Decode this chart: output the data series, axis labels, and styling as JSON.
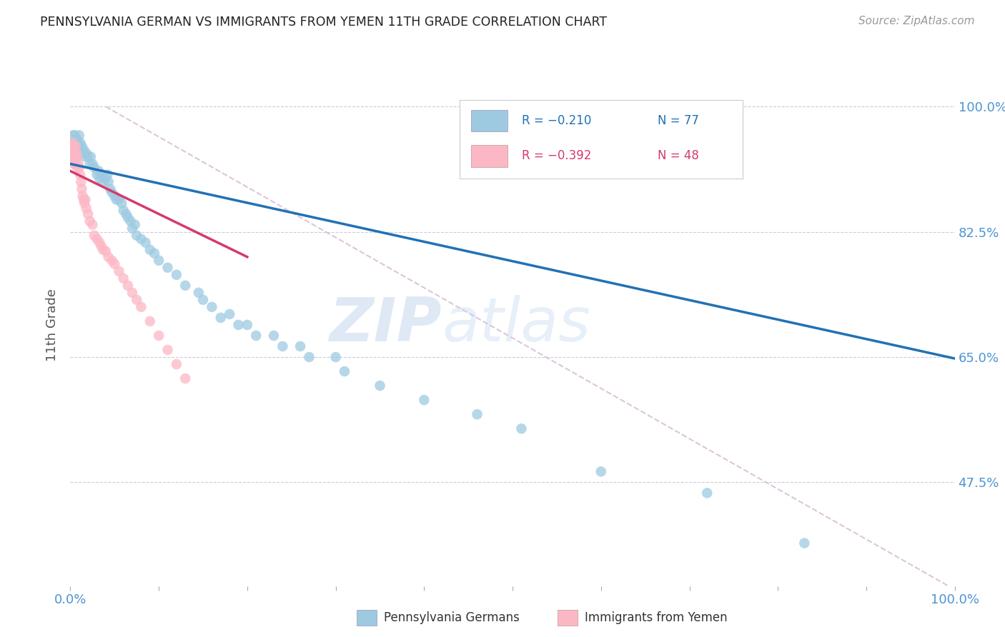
{
  "title": "PENNSYLVANIA GERMAN VS IMMIGRANTS FROM YEMEN 11TH GRADE CORRELATION CHART",
  "source": "Source: ZipAtlas.com",
  "ylabel": "11th Grade",
  "ytick_vals": [
    1.0,
    0.825,
    0.65,
    0.475
  ],
  "ytick_labels": [
    "100.0%",
    "82.5%",
    "65.0%",
    "47.5%"
  ],
  "xmin": 0.0,
  "xmax": 1.0,
  "ymin": 0.33,
  "ymax": 1.06,
  "color_blue": "#9ecae1",
  "color_pink": "#fcb7c5",
  "color_line_blue": "#2171b5",
  "color_line_pink": "#d63b6a",
  "color_line_dashed": "#d4b8d0",
  "color_axis_labels": "#4d94d4",
  "color_title": "#222222",
  "color_source": "#999999",
  "background_color": "#ffffff",
  "watermark_zip": "ZIP",
  "watermark_atlas": "atlas",
  "blue_line_x0": 0.0,
  "blue_line_x1": 1.0,
  "blue_line_y0": 0.92,
  "blue_line_y1": 0.648,
  "pink_line_x0": 0.0,
  "pink_line_x1": 0.2,
  "pink_line_y0": 0.91,
  "pink_line_y1": 0.79,
  "dashed_line_x0": 0.04,
  "dashed_line_x1": 1.0,
  "dashed_line_y0": 1.0,
  "dashed_line_y1": 0.325,
  "blue_x": [
    0.003,
    0.003,
    0.004,
    0.004,
    0.005,
    0.005,
    0.006,
    0.007,
    0.007,
    0.008,
    0.008,
    0.009,
    0.01,
    0.01,
    0.011,
    0.012,
    0.013,
    0.014,
    0.015,
    0.016,
    0.017,
    0.018,
    0.02,
    0.022,
    0.023,
    0.025,
    0.027,
    0.03,
    0.032,
    0.033,
    0.035,
    0.037,
    0.04,
    0.042,
    0.043,
    0.045,
    0.047,
    0.05,
    0.052,
    0.055,
    0.058,
    0.06,
    0.063,
    0.065,
    0.068,
    0.07,
    0.073,
    0.075,
    0.08,
    0.085,
    0.09,
    0.095,
    0.1,
    0.11,
    0.12,
    0.13,
    0.145,
    0.16,
    0.18,
    0.2,
    0.23,
    0.26,
    0.3,
    0.15,
    0.17,
    0.19,
    0.21,
    0.24,
    0.27,
    0.31,
    0.35,
    0.4,
    0.46,
    0.51,
    0.6,
    0.72,
    0.83
  ],
  "blue_y": [
    0.96,
    0.94,
    0.95,
    0.93,
    0.96,
    0.945,
    0.94,
    0.955,
    0.935,
    0.95,
    0.93,
    0.945,
    0.96,
    0.94,
    0.95,
    0.94,
    0.945,
    0.935,
    0.94,
    0.935,
    0.93,
    0.935,
    0.93,
    0.92,
    0.93,
    0.92,
    0.915,
    0.905,
    0.91,
    0.9,
    0.905,
    0.895,
    0.9,
    0.905,
    0.895,
    0.885,
    0.88,
    0.875,
    0.87,
    0.87,
    0.865,
    0.855,
    0.85,
    0.845,
    0.84,
    0.83,
    0.835,
    0.82,
    0.815,
    0.81,
    0.8,
    0.795,
    0.785,
    0.775,
    0.765,
    0.75,
    0.74,
    0.72,
    0.71,
    0.695,
    0.68,
    0.665,
    0.65,
    0.73,
    0.705,
    0.695,
    0.68,
    0.665,
    0.65,
    0.63,
    0.61,
    0.59,
    0.57,
    0.55,
    0.49,
    0.46,
    0.39
  ],
  "pink_x": [
    0.001,
    0.002,
    0.002,
    0.003,
    0.003,
    0.004,
    0.004,
    0.005,
    0.005,
    0.006,
    0.006,
    0.007,
    0.007,
    0.008,
    0.008,
    0.009,
    0.01,
    0.011,
    0.012,
    0.013,
    0.014,
    0.015,
    0.016,
    0.017,
    0.018,
    0.02,
    0.022,
    0.025,
    0.027,
    0.03,
    0.033,
    0.035,
    0.037,
    0.04,
    0.043,
    0.047,
    0.05,
    0.055,
    0.06,
    0.065,
    0.07,
    0.075,
    0.08,
    0.09,
    0.1,
    0.11,
    0.12,
    0.13
  ],
  "pink_y": [
    0.94,
    0.95,
    0.93,
    0.945,
    0.925,
    0.94,
    0.92,
    0.935,
    0.92,
    0.945,
    0.925,
    0.935,
    0.92,
    0.93,
    0.915,
    0.92,
    0.915,
    0.905,
    0.895,
    0.885,
    0.875,
    0.87,
    0.865,
    0.87,
    0.858,
    0.85,
    0.84,
    0.835,
    0.82,
    0.815,
    0.81,
    0.805,
    0.8,
    0.798,
    0.79,
    0.785,
    0.78,
    0.77,
    0.76,
    0.75,
    0.74,
    0.73,
    0.72,
    0.7,
    0.68,
    0.66,
    0.64,
    0.62
  ],
  "legend_r1": "R = −0.210",
  "legend_n1": "N = 77",
  "legend_r2": "R = −0.392",
  "legend_n2": "N = 48"
}
